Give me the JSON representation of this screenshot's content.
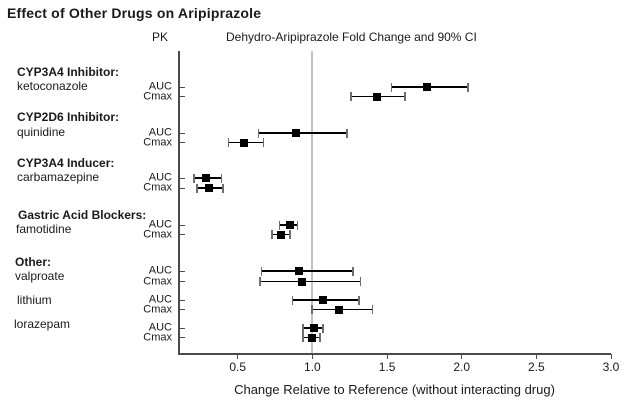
{
  "title": "Effect of Other Drugs on Aripiprazole",
  "chart_data": {
    "type": "scatter",
    "subtype": "forest-plot",
    "pk_header": "PK",
    "plot_header": "Dehydro-Aripiprazole Fold Change and 90% CI",
    "xlabel": "Change Relative to Reference (without interacting drug)",
    "xlim": [
      0.1,
      3.0
    ],
    "x_ticks": [
      0.5,
      1.0,
      1.5,
      2.0,
      2.5,
      3.0
    ],
    "x_tick_labels": [
      "0.5",
      "1.0",
      "1.5",
      "2.0",
      "2.5",
      "3.0"
    ],
    "reference_line": 1.0,
    "grid": "off",
    "colors": {
      "marker": "#000000",
      "ci_line": "#000000",
      "ci_cap": "#6e6e6e",
      "reference_line": "#c3c3c3",
      "axis": "#4a4a4a"
    },
    "groups": [
      {
        "header": "CYP3A4 Inhibitor:",
        "drugs": [
          {
            "name": "ketoconazole",
            "rows": [
              {
                "pk": "AUC",
                "value": 1.77,
                "low": 1.53,
                "high": 2.04
              },
              {
                "pk": "Cmax",
                "value": 1.43,
                "low": 1.26,
                "high": 1.62
              }
            ]
          }
        ]
      },
      {
        "header": "CYP2D6 Inhibitor:",
        "drugs": [
          {
            "name": "quinidine",
            "rows": [
              {
                "pk": "AUC",
                "value": 0.89,
                "low": 0.64,
                "high": 1.23
              },
              {
                "pk": "Cmax",
                "value": 0.54,
                "low": 0.44,
                "high": 0.67
              }
            ]
          }
        ]
      },
      {
        "header": "CYP3A4 Inducer:",
        "drugs": [
          {
            "name": "carbamazepine",
            "rows": [
              {
                "pk": "AUC",
                "value": 0.29,
                "low": 0.21,
                "high": 0.39
              },
              {
                "pk": "Cmax",
                "value": 0.31,
                "low": 0.23,
                "high": 0.4
              }
            ]
          }
        ]
      },
      {
        "header": "Gastric Acid Blockers:",
        "drugs": [
          {
            "name": "famotidine",
            "rows": [
              {
                "pk": "AUC",
                "value": 0.85,
                "low": 0.78,
                "high": 0.9
              },
              {
                "pk": "Cmax",
                "value": 0.79,
                "low": 0.73,
                "high": 0.85
              }
            ]
          }
        ]
      },
      {
        "header": "Other:",
        "drugs": [
          {
            "name": "valproate",
            "rows": [
              {
                "pk": "AUC",
                "value": 0.91,
                "low": 0.66,
                "high": 1.27
              },
              {
                "pk": "Cmax",
                "value": 0.93,
                "low": 0.65,
                "high": 1.32
              }
            ]
          },
          {
            "name": "lithium",
            "rows": [
              {
                "pk": "AUC",
                "value": 1.07,
                "low": 0.87,
                "high": 1.31
              },
              {
                "pk": "Cmax",
                "value": 1.18,
                "low": 1.0,
                "high": 1.4
              }
            ]
          },
          {
            "name": "lorazepam",
            "rows": [
              {
                "pk": "AUC",
                "value": 1.01,
                "low": 0.94,
                "high": 1.07
              },
              {
                "pk": "Cmax",
                "value": 1.0,
                "low": 0.94,
                "high": 1.05
              }
            ]
          }
        ]
      }
    ]
  }
}
